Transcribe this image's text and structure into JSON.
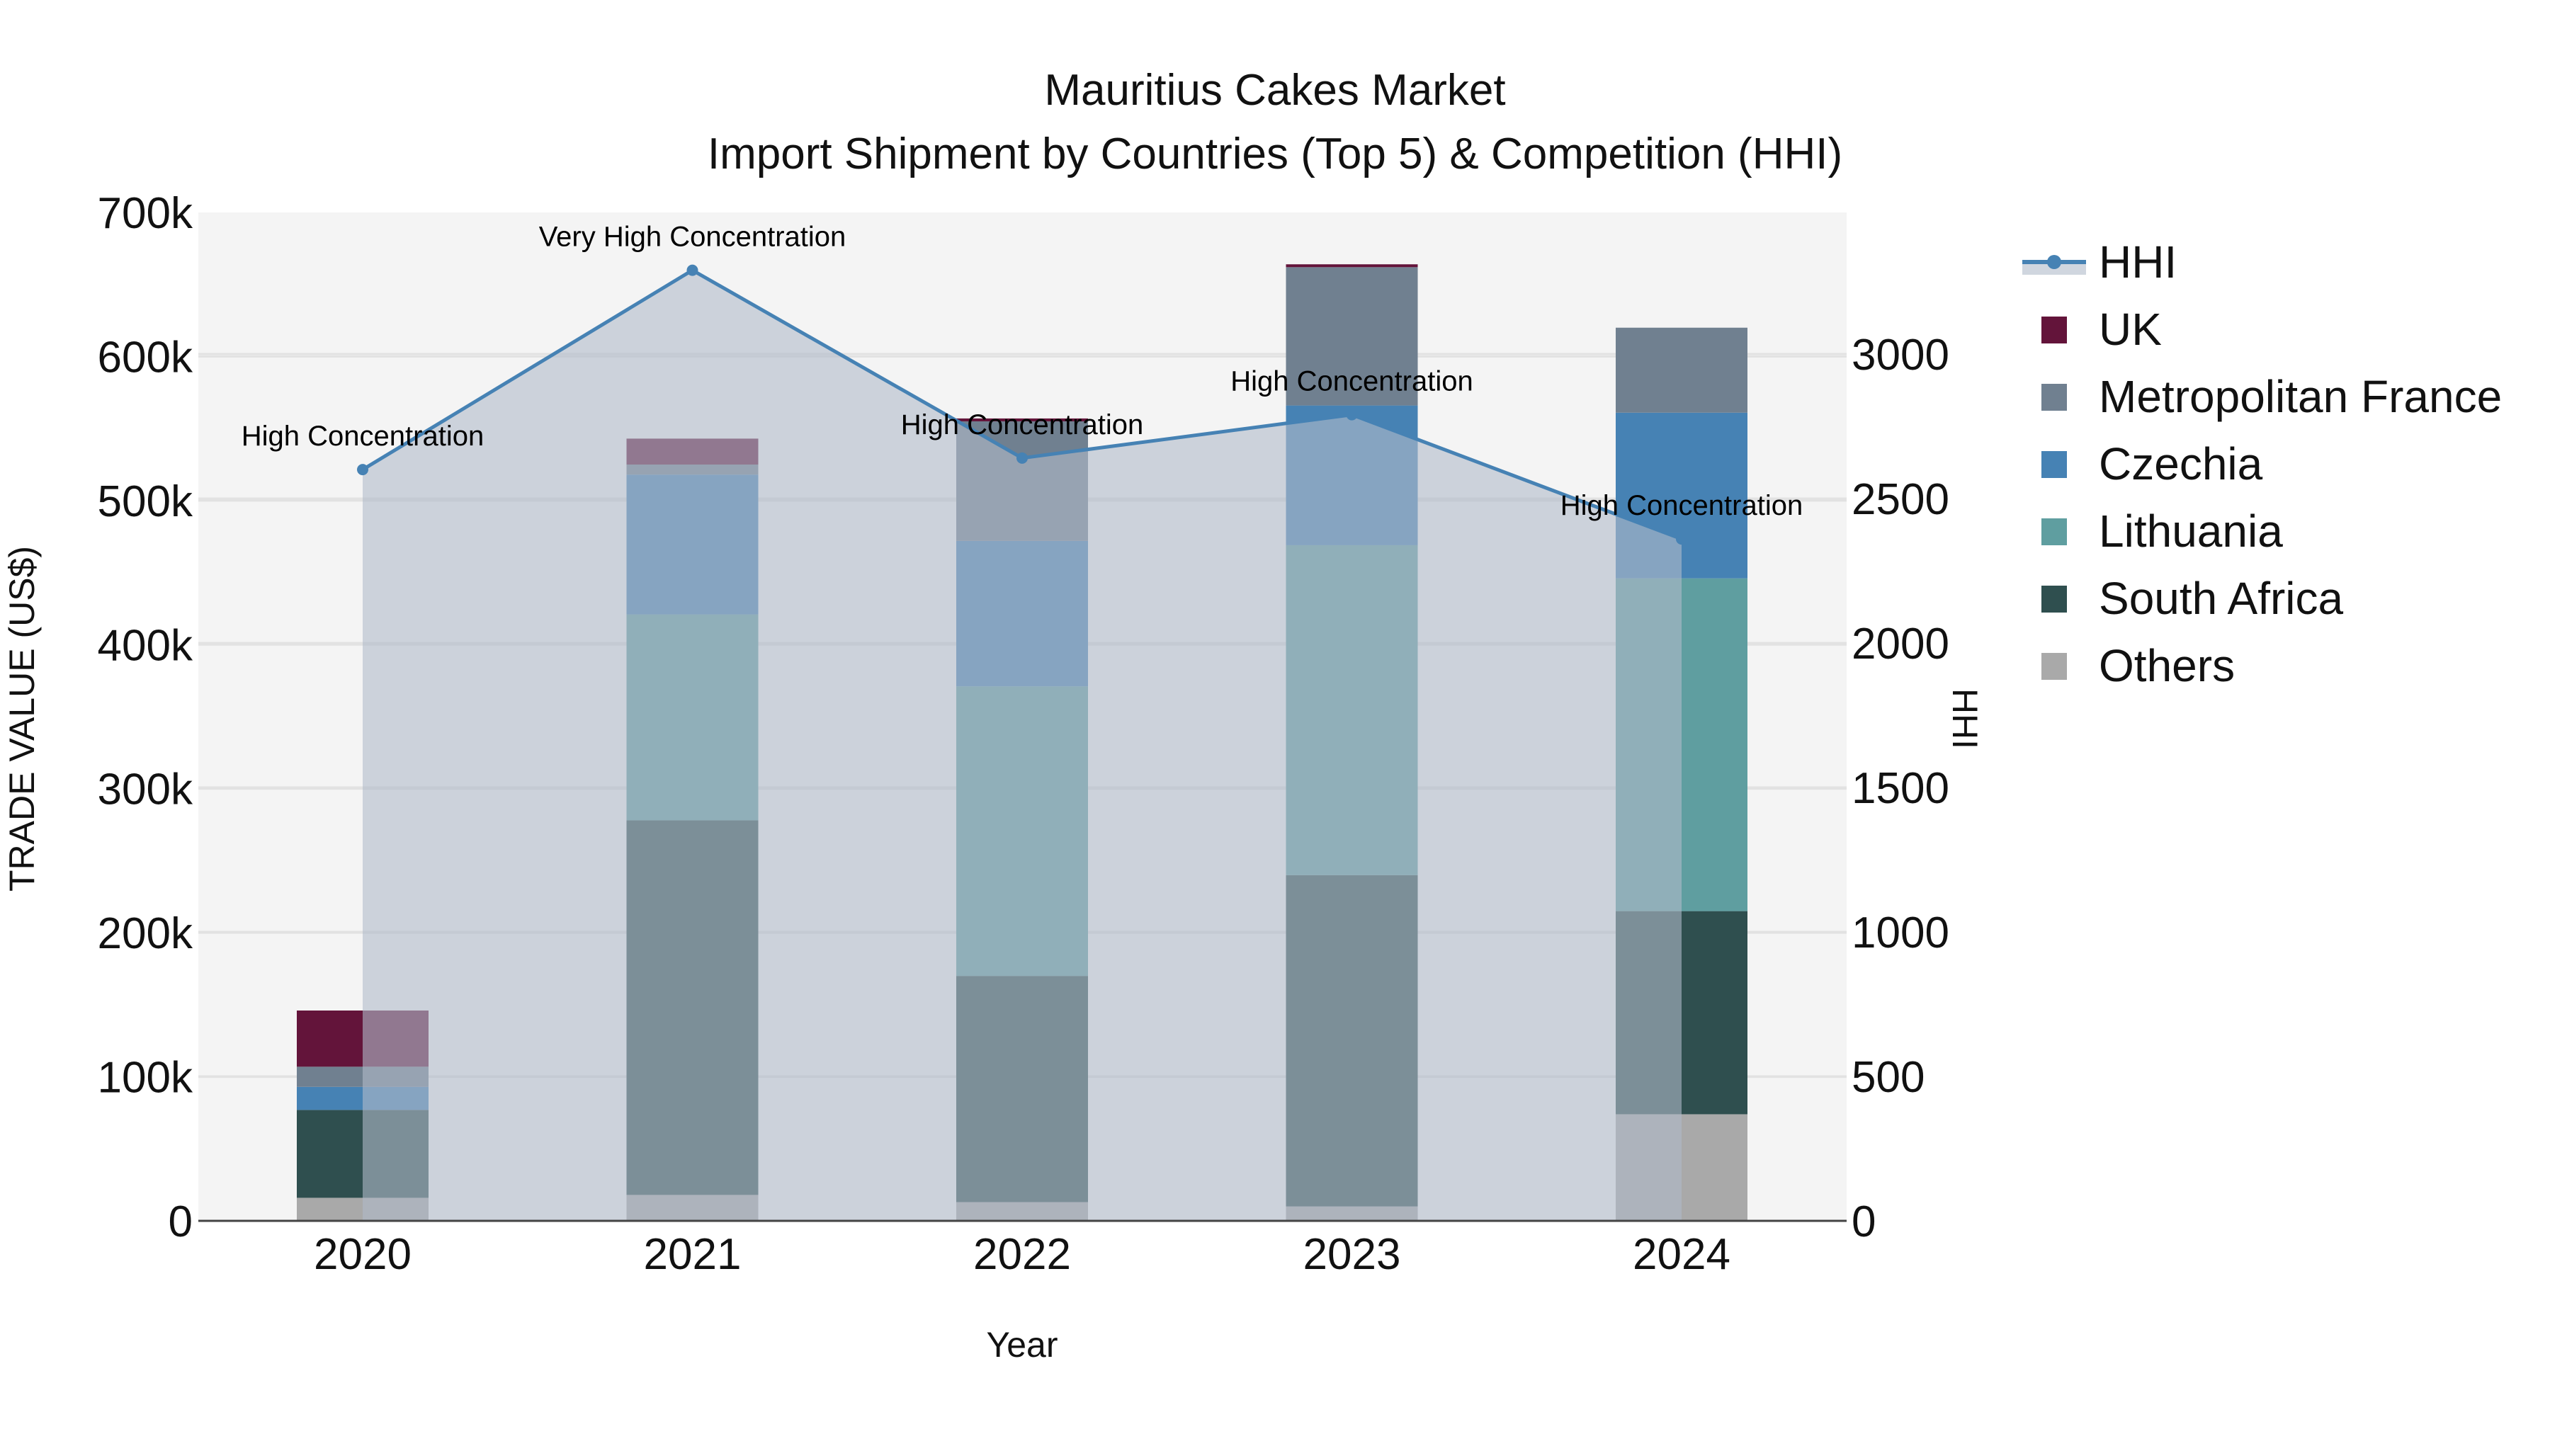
{
  "title": "Mauritius Cakes Market",
  "subtitle": "Import Shipment by Countries (Top 5) & Competition (HHI)",
  "colors": {
    "plot_bg": "#f4f4f4",
    "grid": "#e2e2e2",
    "hhi_line": "#4682b4",
    "hhi_fill": "rgba(176,186,201,0.6)"
  },
  "chart_data": {
    "type": "bar",
    "stacked": true,
    "title": "Mauritius Cakes Market",
    "subtitle": "Import Shipment by Countries (Top 5) & Competition (HHI)",
    "xlabel": "Year",
    "ylabel": "TRADE VALUE (US$)",
    "y2label": "HHI",
    "categories": [
      "2020",
      "2021",
      "2022",
      "2023",
      "2024"
    ],
    "ylim": [
      0,
      700000
    ],
    "y_ticks": [
      0,
      100000,
      200000,
      300000,
      400000,
      500000,
      600000,
      700000
    ],
    "y_tick_labels": [
      "0",
      "100k",
      "200k",
      "300k",
      "400k",
      "500k",
      "600k",
      "700k"
    ],
    "y2lim": [
      0,
      3490
    ],
    "y2_ticks": [
      0,
      500,
      1000,
      1500,
      2000,
      2500,
      3000
    ],
    "y2_tick_labels": [
      "0",
      "500",
      "1000",
      "1500",
      "2000",
      "2500",
      "3000"
    ],
    "grid": true,
    "legend_position": "right",
    "series": [
      {
        "name": "Others",
        "color": "#a9a9a9",
        "values": [
          16000,
          18000,
          13000,
          10000,
          74000
        ]
      },
      {
        "name": "South Africa",
        "color": "#2f4f4f",
        "values": [
          61000,
          260000,
          157000,
          230000,
          141000
        ]
      },
      {
        "name": "Lithuania",
        "color": "#5f9ea0",
        "values": [
          0,
          143000,
          201000,
          229000,
          231000
        ]
      },
      {
        "name": "Czechia",
        "color": "#4682b4",
        "values": [
          16000,
          97000,
          101000,
          97000,
          115000
        ]
      },
      {
        "name": "Metropolitan France",
        "color": "#708090",
        "values": [
          14000,
          7000,
          83000,
          96000,
          59000
        ]
      },
      {
        "name": "UK",
        "color": "#63143a",
        "values": [
          39000,
          18000,
          2000,
          2000,
          0
        ]
      }
    ],
    "hhi": {
      "name": "HHI",
      "type": "line+area",
      "axis": "y2",
      "values": [
        2600,
        3290,
        2640,
        2790,
        2360
      ],
      "annotations": [
        "High Concentration",
        "Very High Concentration",
        "High Concentration",
        "High Concentration",
        "High Concentration"
      ]
    }
  },
  "legend": [
    {
      "name": "HHI",
      "kind": "line",
      "color": "#4682b4"
    },
    {
      "name": "UK",
      "kind": "box",
      "color": "#63143a"
    },
    {
      "name": "Metropolitan France",
      "kind": "box",
      "color": "#708090"
    },
    {
      "name": "Czechia",
      "kind": "box",
      "color": "#4682b4"
    },
    {
      "name": "Lithuania",
      "kind": "box",
      "color": "#5f9ea0"
    },
    {
      "name": "South Africa",
      "kind": "box",
      "color": "#2f4f4f"
    },
    {
      "name": "Others",
      "kind": "box",
      "color": "#a9a9a9"
    }
  ]
}
